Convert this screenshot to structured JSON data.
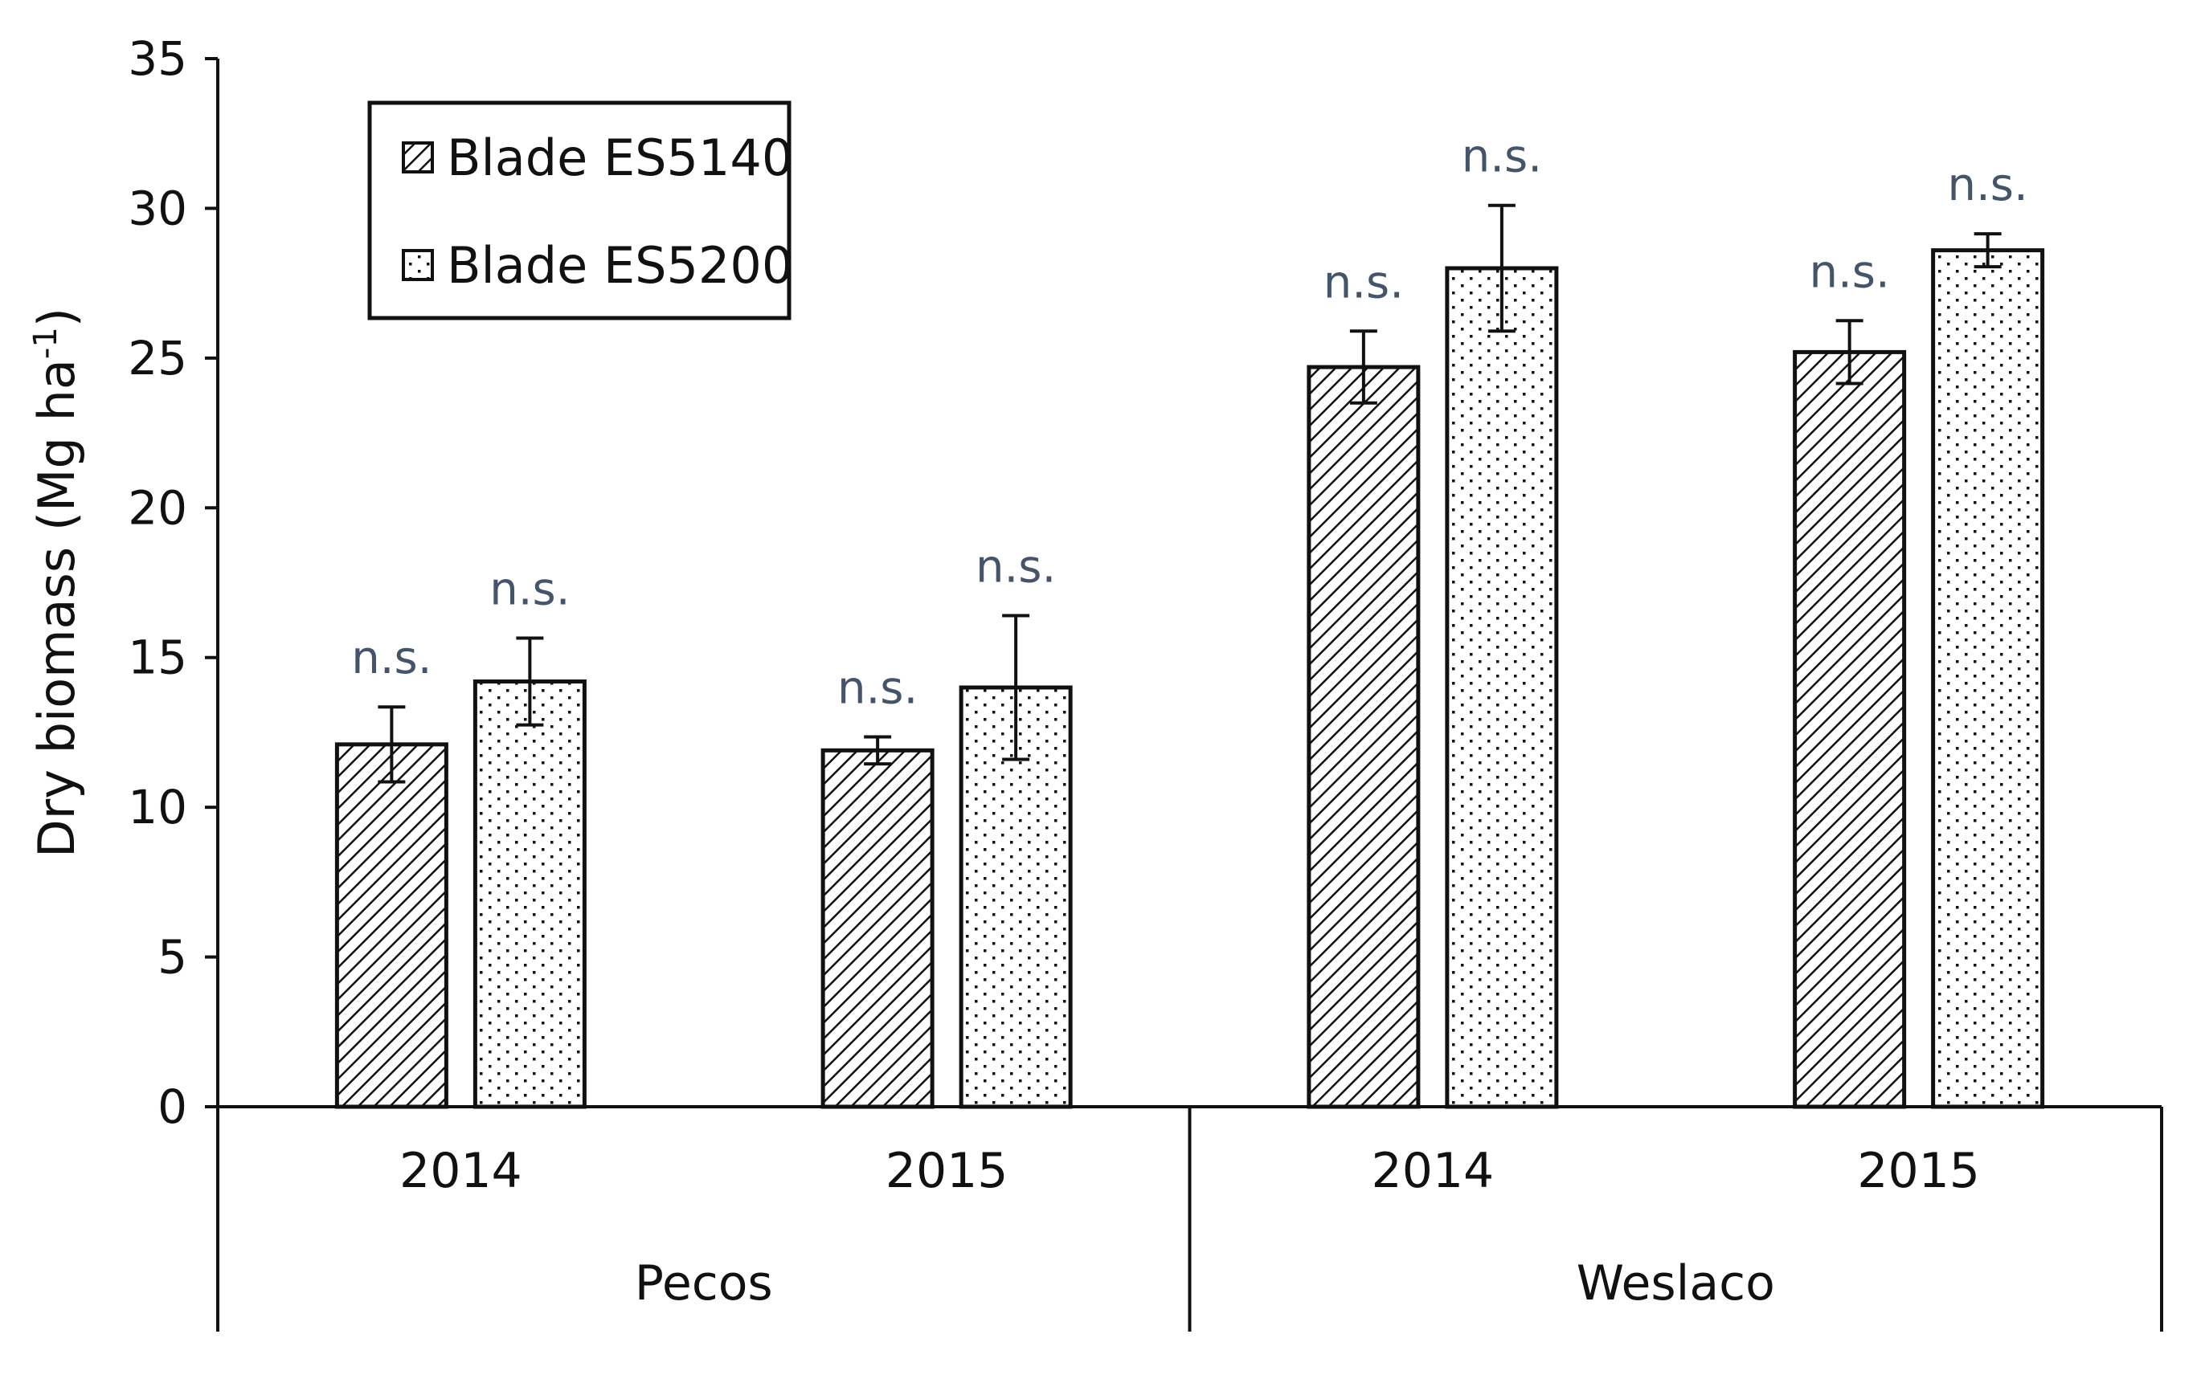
{
  "chart_data": {
    "type": "bar",
    "ylabel": "Dry biomass (Mg ha",
    "ylabel_sup": "-1",
    "ylabel_close": ")",
    "ylim": [
      0,
      35
    ],
    "yticks": [
      0,
      5,
      10,
      15,
      20,
      25,
      30,
      35
    ],
    "grid": false,
    "legend_position": "top-left",
    "groups": [
      {
        "name": "Pecos",
        "categories": [
          "2014",
          "2015"
        ]
      },
      {
        "name": "Weslaco",
        "categories": [
          "2014",
          "2015"
        ]
      }
    ],
    "categories": [
      "2014",
      "2015",
      "2014",
      "2015"
    ],
    "series": [
      {
        "name": "Blade ES5140",
        "pattern": "diagonal-hatch",
        "values": [
          12.1,
          11.9,
          24.7,
          25.2
        ],
        "errors": [
          1.25,
          0.45,
          1.2,
          1.05
        ],
        "annotations": [
          "n.s.",
          "n.s.",
          "n.s.",
          "n.s."
        ]
      },
      {
        "name": "Blade ES5200",
        "pattern": "dots",
        "values": [
          14.2,
          14.0,
          28.0,
          28.6
        ],
        "errors": [
          1.45,
          2.4,
          2.1,
          0.55
        ],
        "annotations": [
          "n.s.",
          "n.s.",
          "n.s.",
          "n.s."
        ]
      }
    ]
  }
}
